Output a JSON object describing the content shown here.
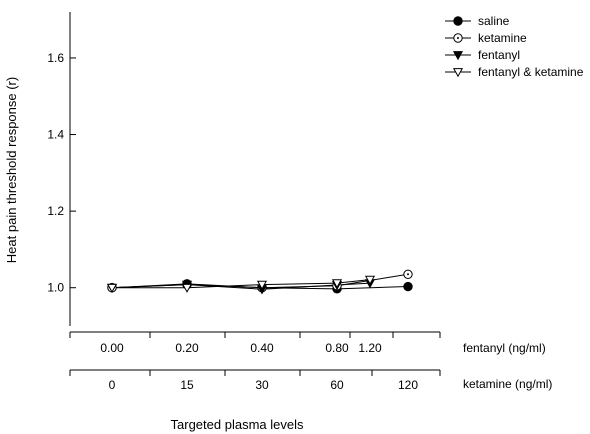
{
  "chart_data": {
    "type": "line",
    "ylabel": "Heat pain threshold response (r)",
    "xlabel": "Targeted plasma levels",
    "ylim": [
      0.9,
      1.72
    ],
    "yticks": [
      1.0,
      1.2,
      1.4,
      1.6
    ],
    "ytick_labels": [
      "1.0",
      "1.2",
      "1.4",
      "1.6"
    ],
    "grid": false,
    "legend_position": "top-right",
    "x_axes": [
      {
        "name": "fentanyl (ng/ml)",
        "ticks": [
          "0.00",
          "0.20",
          "0.40",
          "0.80",
          "1.20"
        ]
      },
      {
        "name": "ketamine (ng/ml)",
        "ticks": [
          "0",
          "15",
          "30",
          "60",
          "120"
        ]
      }
    ],
    "series": [
      {
        "name": "saline",
        "marker": "filled-circle",
        "x": [
          0,
          15,
          30,
          60,
          120
        ],
        "y": [
          1.0,
          1.01,
          1.0,
          0.997,
          1.003
        ]
      },
      {
        "name": "ketamine",
        "marker": "open-circle",
        "x": [
          0,
          15,
          30,
          60,
          120
        ],
        "y": [
          1.0,
          1.008,
          1.0,
          1.005,
          1.035
        ]
      },
      {
        "name": "fentanyl",
        "marker": "filled-triangle-down",
        "x": [
          0,
          15,
          30,
          60,
          90
        ],
        "y": [
          1.0,
          1.008,
          0.996,
          1.007,
          1.012
        ]
      },
      {
        "name": "fentanyl & ketamine",
        "marker": "open-triangle-down",
        "x": [
          0,
          15,
          30,
          60,
          90
        ],
        "y": [
          1.0,
          1.0,
          1.008,
          1.012,
          1.021
        ]
      }
    ]
  }
}
